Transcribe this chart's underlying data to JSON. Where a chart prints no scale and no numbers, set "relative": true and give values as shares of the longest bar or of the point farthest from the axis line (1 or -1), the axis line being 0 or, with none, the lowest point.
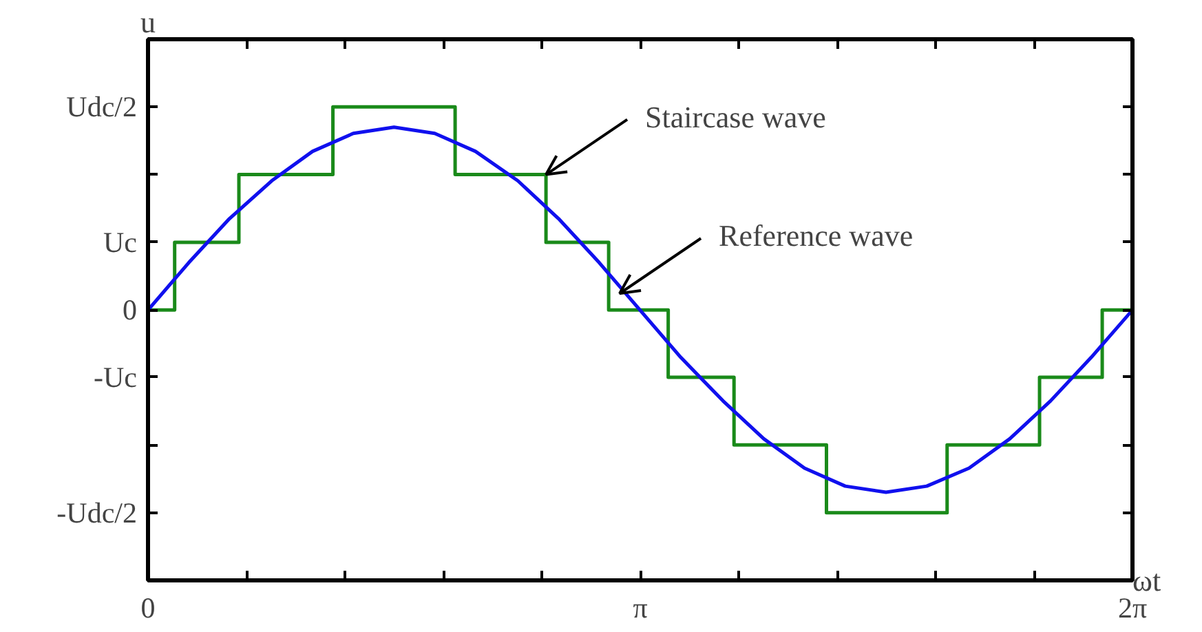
{
  "chart_data": {
    "type": "line",
    "xlabel": "ωt",
    "ylabel": "u",
    "relative": true,
    "xlim": [
      0,
      6.283
    ],
    "xticks": [
      {
        "value": 0,
        "label": "0"
      },
      {
        "value": 3.142,
        "label": "π"
      },
      {
        "value": 6.283,
        "label": "2π"
      }
    ],
    "grid": false,
    "marker": "none",
    "line_style": "solid",
    "series": [
      {
        "type": "step",
        "color": "#1a8a1a",
        "x": [
          0,
          0.17,
          0.58,
          1.18,
          1.96,
          2.54,
          2.94,
          3.32,
          3.74,
          4.33,
          5.1,
          5.69,
          6.09,
          6.283
        ],
        "values": [
          0.571,
          0.714,
          0.857,
          1,
          0.857,
          0.714,
          0.571,
          0.429,
          0.286,
          0.143,
          0.286,
          0.429,
          0.571,
          0.571
        ]
      },
      {
        "color": "#1010ee",
        "x": [
          0,
          0.26,
          0.52,
          0.79,
          1.05,
          1.31,
          1.57,
          1.83,
          2.09,
          2.36,
          2.62,
          2.88,
          3.14,
          3.4,
          3.67,
          3.93,
          4.19,
          4.45,
          4.71,
          4.97,
          5.24,
          5.5,
          5.76,
          6.02,
          6.283
        ],
        "values": [
          0.571,
          0.671,
          0.764,
          0.844,
          0.906,
          0.944,
          0.957,
          0.944,
          0.906,
          0.844,
          0.764,
          0.671,
          0.571,
          0.471,
          0.379,
          0.299,
          0.237,
          0.199,
          0.186,
          0.199,
          0.237,
          0.299,
          0.379,
          0.471,
          0.571
        ]
      }
    ],
    "annotations": [
      {
        "text": "Staircase wave",
        "x": 2.54,
        "y": 0.857
      },
      {
        "text": "Reference wave",
        "x": 3.01,
        "y": 0.606
      },
      "Udc/2",
      "Uc",
      "0",
      "-Uc",
      "-Udc/2"
    ]
  }
}
